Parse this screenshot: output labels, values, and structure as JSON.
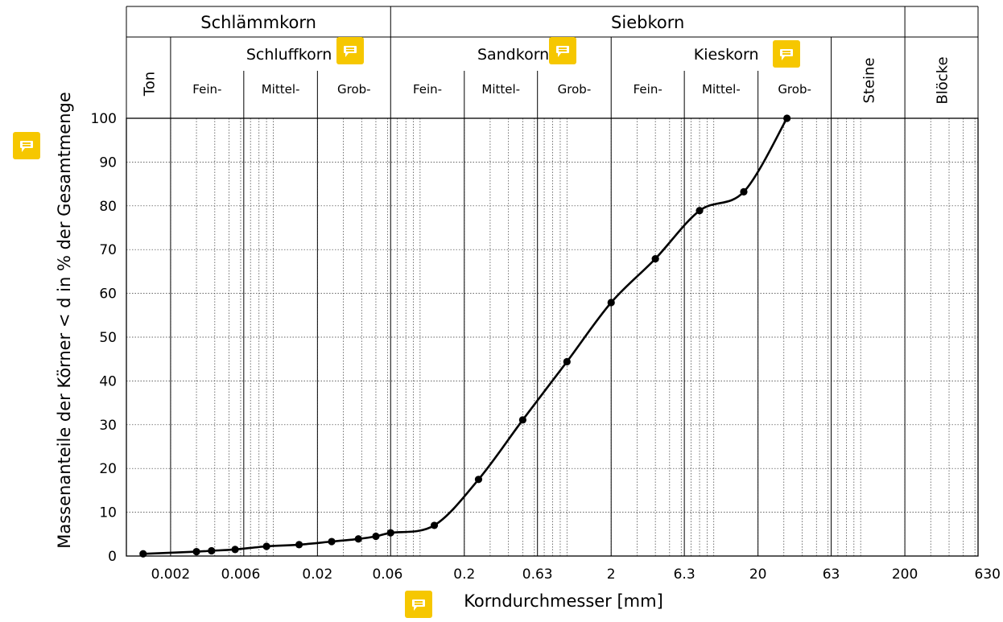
{
  "chart_data": {
    "type": "line",
    "title": "",
    "xlabel": "Korndurchmesser [mm]",
    "ylabel": "Massenanteile der Körner < d in % der Gesamtmenge",
    "x_scale": "log",
    "xlim": [
      0.001,
      630
    ],
    "ylim": [
      0,
      100
    ],
    "x_tick_labels": [
      "0.002",
      "0.006",
      "0.02",
      "0.06",
      "0.2",
      "0.63",
      "2",
      "6.3",
      "20",
      "63",
      "200",
      "630"
    ],
    "y_tick_labels": [
      "0",
      "10",
      "20",
      "30",
      "40",
      "50",
      "60",
      "70",
      "80",
      "90",
      "100"
    ],
    "grid": true,
    "marker_color": "#000000",
    "series": [
      {
        "x": [
          0.0013,
          0.003,
          0.0038,
          0.0055,
          0.009,
          0.015,
          0.025,
          0.038,
          0.05,
          0.063,
          0.125,
          0.25,
          0.5,
          1.0,
          2.0,
          4.0,
          8.0,
          16.0,
          31.5
        ],
        "values": [
          0.5,
          1.0,
          1.2,
          1.5,
          2.2,
          2.6,
          3.3,
          3.9,
          4.5,
          5.3,
          7.0,
          17.5,
          31.1,
          44.4,
          57.9,
          67.9,
          78.9,
          83.2,
          100
        ]
      }
    ]
  },
  "header": {
    "group_labels": [
      "Schlämmkorn",
      "Siebkorn"
    ],
    "class_labels": [
      "Schluffkorn",
      "Sandkorn",
      "Kieskorn"
    ],
    "sub_labels": [
      "Fein-",
      "Mittel-",
      "Grob-",
      "Fein-",
      "Mittel-",
      "Grob-",
      "Fein-",
      "Mittel-",
      "Grob-"
    ],
    "rotated_labels": [
      "Ton",
      "Steine",
      "Blöcke"
    ]
  },
  "annotation_color": "#f6c700",
  "annotation_icon": "comment-note-icon"
}
